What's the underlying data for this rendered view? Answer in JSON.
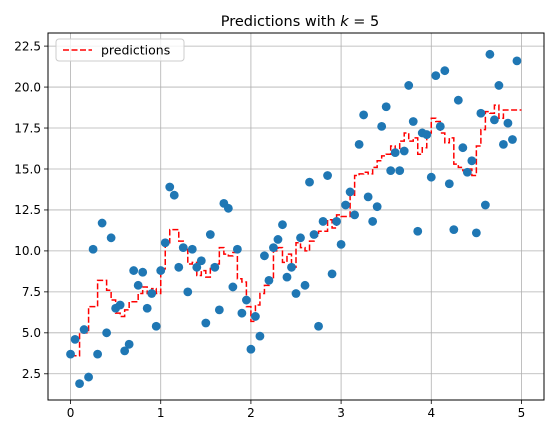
{
  "chart_data": {
    "type": "scatter",
    "title": "Predictions with k = 5",
    "title_parts": {
      "prefix": "Predictions with ",
      "var": "k",
      "suffix": " = 5"
    },
    "xlim": [
      -0.25,
      5.25
    ],
    "ylim": [
      0.9,
      23.3
    ],
    "xticks": [
      0,
      1,
      2,
      3,
      4,
      5
    ],
    "yticks": [
      2.5,
      5.0,
      7.5,
      10.0,
      12.5,
      15.0,
      17.5,
      20.0,
      22.5
    ],
    "xtick_labels": [
      "0",
      "1",
      "2",
      "3",
      "4",
      "5"
    ],
    "ytick_labels": [
      "2.5",
      "5.0",
      "7.5",
      "10.0",
      "12.5",
      "15.0",
      "17.5",
      "20.0",
      "22.5"
    ],
    "grid": true,
    "legend": {
      "position": "top-left",
      "entries": [
        "predictions"
      ]
    },
    "colors": {
      "points": "#1f77b4",
      "predictions": "#ff0000",
      "grid": "#b0b0b0"
    },
    "series": [
      {
        "kind": "scatter",
        "points": [
          [
            0.0,
            3.7
          ],
          [
            0.05,
            4.6
          ],
          [
            0.1,
            1.9
          ],
          [
            0.15,
            5.2
          ],
          [
            0.2,
            2.3
          ],
          [
            0.25,
            10.1
          ],
          [
            0.3,
            3.7
          ],
          [
            0.35,
            11.7
          ],
          [
            0.4,
            5.0
          ],
          [
            0.45,
            10.8
          ],
          [
            0.5,
            6.5
          ],
          [
            0.55,
            6.7
          ],
          [
            0.6,
            3.9
          ],
          [
            0.65,
            4.3
          ],
          [
            0.7,
            8.8
          ],
          [
            0.75,
            7.9
          ],
          [
            0.8,
            8.7
          ],
          [
            0.85,
            6.5
          ],
          [
            0.9,
            7.4
          ],
          [
            0.95,
            5.4
          ],
          [
            1.0,
            8.8
          ],
          [
            1.05,
            10.5
          ],
          [
            1.1,
            13.9
          ],
          [
            1.15,
            13.4
          ],
          [
            1.2,
            9.0
          ],
          [
            1.25,
            10.2
          ],
          [
            1.3,
            7.5
          ],
          [
            1.35,
            10.1
          ],
          [
            1.4,
            9.0
          ],
          [
            1.45,
            9.4
          ],
          [
            1.5,
            5.6
          ],
          [
            1.55,
            11.0
          ],
          [
            1.6,
            9.0
          ],
          [
            1.65,
            6.4
          ],
          [
            1.7,
            12.9
          ],
          [
            1.75,
            12.6
          ],
          [
            1.8,
            7.8
          ],
          [
            1.85,
            10.1
          ],
          [
            1.9,
            6.2
          ],
          [
            1.95,
            7.0
          ],
          [
            2.0,
            4.0
          ],
          [
            2.05,
            6.0
          ],
          [
            2.1,
            4.8
          ],
          [
            2.15,
            9.7
          ],
          [
            2.2,
            8.2
          ],
          [
            2.25,
            10.2
          ],
          [
            2.3,
            10.7
          ],
          [
            2.35,
            11.6
          ],
          [
            2.4,
            8.4
          ],
          [
            2.45,
            9.0
          ],
          [
            2.5,
            7.4
          ],
          [
            2.55,
            10.8
          ],
          [
            2.6,
            7.9
          ],
          [
            2.65,
            14.2
          ],
          [
            2.7,
            11.0
          ],
          [
            2.75,
            5.4
          ],
          [
            2.8,
            11.8
          ],
          [
            2.85,
            14.6
          ],
          [
            2.9,
            8.6
          ],
          [
            2.95,
            11.8
          ],
          [
            3.0,
            10.4
          ],
          [
            3.05,
            12.8
          ],
          [
            3.1,
            13.6
          ],
          [
            3.15,
            12.2
          ],
          [
            3.2,
            16.5
          ],
          [
            3.25,
            18.3
          ],
          [
            3.3,
            13.3
          ],
          [
            3.35,
            11.8
          ],
          [
            3.4,
            12.7
          ],
          [
            3.45,
            17.6
          ],
          [
            3.5,
            18.8
          ],
          [
            3.55,
            14.9
          ],
          [
            3.6,
            16.0
          ],
          [
            3.65,
            14.9
          ],
          [
            3.7,
            16.1
          ],
          [
            3.75,
            20.1
          ],
          [
            3.8,
            17.9
          ],
          [
            3.85,
            11.2
          ],
          [
            3.9,
            17.2
          ],
          [
            3.95,
            17.1
          ],
          [
            4.0,
            14.5
          ],
          [
            4.05,
            20.7
          ],
          [
            4.1,
            17.6
          ],
          [
            4.15,
            21.0
          ],
          [
            4.2,
            14.1
          ],
          [
            4.25,
            11.3
          ],
          [
            4.3,
            19.2
          ],
          [
            4.35,
            16.3
          ],
          [
            4.4,
            14.8
          ],
          [
            4.45,
            15.5
          ],
          [
            4.5,
            11.1
          ],
          [
            4.55,
            18.4
          ],
          [
            4.6,
            12.8
          ],
          [
            4.65,
            22.0
          ],
          [
            4.7,
            18.0
          ],
          [
            4.75,
            20.1
          ],
          [
            4.8,
            16.5
          ],
          [
            4.85,
            17.8
          ],
          [
            4.9,
            16.8
          ],
          [
            4.95,
            21.6
          ]
        ]
      },
      {
        "kind": "step",
        "name": "predictions",
        "x": [
          0.0,
          0.05,
          0.1,
          0.15,
          0.2,
          0.25,
          0.3,
          0.35,
          0.4,
          0.45,
          0.5,
          0.55,
          0.6,
          0.65,
          0.7,
          0.75,
          0.8,
          0.85,
          0.9,
          0.95,
          1.0,
          1.05,
          1.1,
          1.15,
          1.2,
          1.25,
          1.3,
          1.35,
          1.4,
          1.45,
          1.5,
          1.55,
          1.6,
          1.65,
          1.7,
          1.75,
          1.8,
          1.85,
          1.9,
          1.95,
          2.0,
          2.05,
          2.1,
          2.15,
          2.2,
          2.25,
          2.3,
          2.35,
          2.4,
          2.45,
          2.5,
          2.55,
          2.6,
          2.65,
          2.7,
          2.75,
          2.8,
          2.85,
          2.9,
          2.95,
          3.0,
          3.05,
          3.1,
          3.15,
          3.2,
          3.25,
          3.3,
          3.35,
          3.4,
          3.45,
          3.5,
          3.55,
          3.6,
          3.65,
          3.7,
          3.75,
          3.8,
          3.85,
          3.9,
          3.95,
          4.0,
          4.05,
          4.1,
          4.15,
          4.2,
          4.25,
          4.3,
          4.35,
          4.4,
          4.45,
          4.5,
          4.55,
          4.6,
          4.65,
          4.7,
          4.75,
          4.8,
          4.85,
          4.9,
          5.0
        ],
        "y": [
          3.6,
          3.6,
          5.0,
          5.0,
          6.6,
          6.6,
          8.2,
          8.2,
          7.6,
          7.0,
          6.2,
          6.0,
          6.4,
          6.9,
          6.9,
          7.4,
          7.8,
          7.4,
          7.7,
          7.4,
          8.9,
          10.5,
          11.3,
          11.3,
          10.6,
          10.1,
          9.2,
          9.3,
          8.5,
          8.8,
          8.4,
          9.1,
          9.2,
          10.2,
          9.8,
          9.7,
          9.9,
          8.3,
          8.1,
          6.6,
          5.7,
          6.7,
          7.4,
          7.9,
          8.3,
          10.0,
          10.2,
          9.3,
          9.8,
          9.0,
          10.5,
          10.2,
          10.0,
          10.6,
          10.9,
          11.2,
          11.2,
          11.9,
          11.4,
          12.2,
          12.1,
          12.1,
          13.4,
          14.6,
          14.7,
          14.8,
          14.7,
          15.1,
          15.5,
          15.8,
          15.9,
          16.4,
          16.2,
          16.7,
          17.2,
          16.7,
          16.9,
          15.9,
          16.3,
          17.2,
          18.1,
          17.9,
          17.2,
          16.6,
          16.9,
          15.3,
          15.1,
          14.9,
          15.0,
          14.6,
          16.4,
          17.4,
          18.5,
          18.4,
          18.9,
          18.1,
          18.6,
          18.6,
          18.6,
          18.6
        ]
      }
    ]
  }
}
